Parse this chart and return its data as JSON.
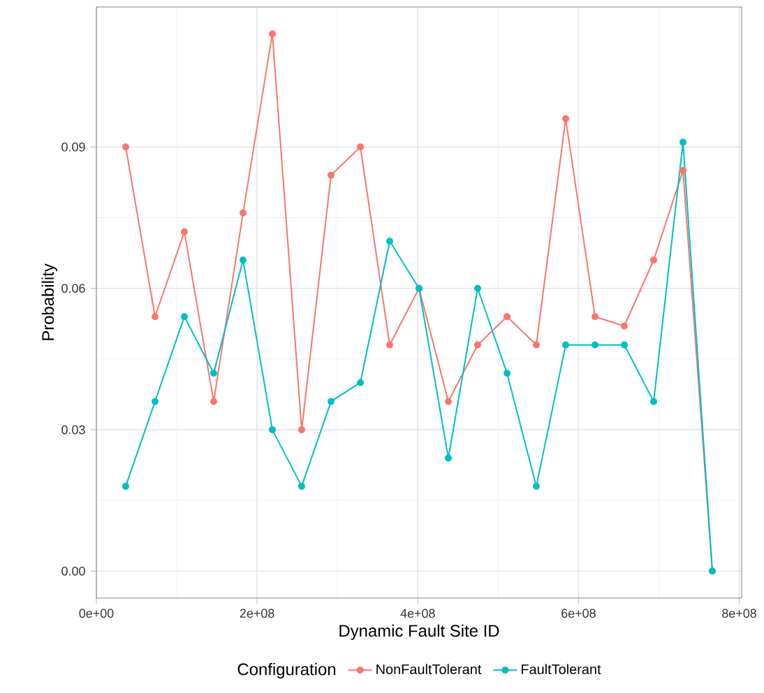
{
  "chart_data": {
    "type": "line",
    "xlabel": "Dynamic Fault Site ID",
    "ylabel": "Probability",
    "legend_title": "Configuration",
    "x": [
      36500000,
      73000000,
      109500000,
      146000000,
      182500000,
      219000000,
      255500000,
      292000000,
      328500000,
      365000000,
      401500000,
      438000000,
      474500000,
      511000000,
      547500000,
      584000000,
      620500000,
      657000000,
      693500000,
      730000000,
      766500000
    ],
    "series": [
      {
        "name": "NonFaultTolerant",
        "color": "#f8766d",
        "values": [
          0.09,
          0.054,
          0.072,
          0.036,
          0.076,
          0.114,
          0.03,
          0.084,
          0.09,
          0.048,
          0.06,
          0.036,
          0.048,
          0.054,
          0.048,
          0.096,
          0.054,
          0.052,
          0.066,
          0.085,
          0.0
        ]
      },
      {
        "name": "FaultTolerant",
        "color": "#00bfc4",
        "values": [
          0.018,
          0.036,
          0.054,
          0.042,
          0.066,
          0.03,
          0.018,
          0.036,
          0.04,
          0.07,
          0.06,
          0.024,
          0.06,
          0.042,
          0.018,
          0.048,
          0.048,
          0.048,
          0.036,
          0.091,
          0.0
        ]
      }
    ],
    "xlim": [
      0,
      803000000
    ],
    "ylim": [
      -0.0057,
      0.1197
    ],
    "xticks": [
      {
        "value": 0,
        "label": "0e+00"
      },
      {
        "value": 200000000,
        "label": "2e+08"
      },
      {
        "value": 400000000,
        "label": "4e+08"
      },
      {
        "value": 600000000,
        "label": "6e+08"
      },
      {
        "value": 800000000,
        "label": "8e+08"
      }
    ],
    "yticks": [
      {
        "value": 0,
        "label": "0.00"
      },
      {
        "value": 0.03,
        "label": "0.03"
      },
      {
        "value": 0.06,
        "label": "0.06"
      },
      {
        "value": 0.09,
        "label": "0.09"
      }
    ],
    "grid": true,
    "legend": "bottom",
    "marker": "circle",
    "line_style": "solid"
  }
}
